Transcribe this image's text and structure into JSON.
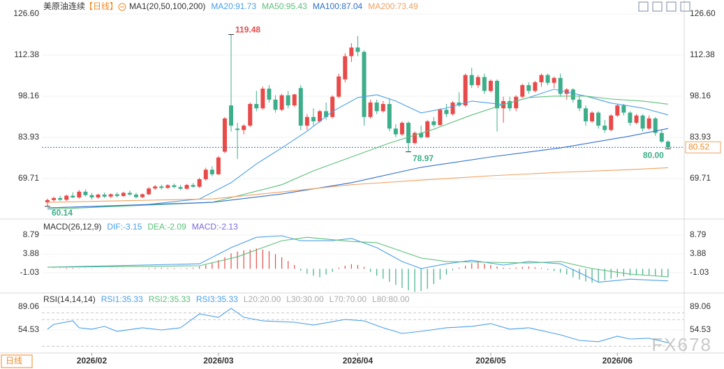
{
  "period_button": "日线",
  "watermark": "FX678",
  "chart_data": [
    {
      "type": "candlestick",
      "title": "美原油连续",
      "period": "【日线】",
      "indicator": "MA1(20,50,100,200)",
      "up_color": "#e84a4a",
      "down_color": "#3dae8a",
      "ylim": [
        56.23,
        129.01
      ],
      "yticks": [
        {
          "value": 126.6,
          "label": "126.60"
        },
        112.38,
        98.16,
        83.93,
        69.71
      ],
      "xticks": [
        {
          "value": 7,
          "label": "2026/02"
        },
        {
          "value": 27,
          "label": "2026/03"
        },
        {
          "value": 49,
          "label": "2026/04"
        },
        {
          "value": 70,
          "label": "2026/05"
        },
        {
          "value": 90,
          "label": "2026/06"
        }
      ],
      "candles": [
        [
          61.5,
          62.8,
          60.14,
          62.3
        ],
        [
          62.3,
          63.5,
          61.8,
          63.0
        ],
        [
          63.0,
          63.8,
          62.0,
          62.4
        ],
        [
          62.4,
          64.2,
          62.0,
          63.8
        ],
        [
          63.8,
          65.0,
          63.0,
          63.2
        ],
        [
          63.2,
          65.8,
          62.8,
          65.2
        ],
        [
          65.2,
          66.0,
          63.5,
          64.0
        ],
        [
          64.0,
          64.8,
          62.5,
          63.2
        ],
        [
          63.2,
          64.5,
          62.8,
          64.2
        ],
        [
          64.2,
          64.9,
          63.0,
          63.5
        ],
        [
          63.5,
          64.6,
          63.0,
          64.3
        ],
        [
          64.3,
          65.0,
          63.2,
          63.7
        ],
        [
          63.7,
          65.2,
          63.4,
          64.8
        ],
        [
          64.8,
          65.6,
          63.8,
          64.2
        ],
        [
          64.2,
          64.8,
          62.9,
          63.3
        ],
        [
          63.3,
          64.6,
          63.0,
          64.3
        ],
        [
          64.3,
          66.8,
          64.0,
          66.3
        ],
        [
          66.3,
          67.5,
          65.8,
          67.0
        ],
        [
          67.0,
          67.6,
          66.0,
          66.5
        ],
        [
          66.5,
          67.8,
          66.2,
          67.4
        ],
        [
          67.4,
          68.0,
          66.4,
          66.8
        ],
        [
          66.8,
          67.5,
          65.8,
          66.2
        ],
        [
          66.2,
          67.9,
          66.0,
          67.5
        ],
        [
          67.5,
          68.2,
          66.6,
          66.9
        ],
        [
          66.9,
          70.0,
          66.5,
          69.5
        ],
        [
          69.5,
          73.5,
          69.0,
          72.8
        ],
        [
          72.8,
          74.0,
          70.5,
          71.2
        ],
        [
          71.2,
          77.5,
          71.0,
          77.0
        ],
        [
          79.0,
          91.0,
          78.5,
          90.5
        ],
        [
          95.0,
          119.48,
          86.0,
          88.0
        ],
        [
          87.0,
          89.0,
          76.5,
          86.5
        ],
        [
          86.5,
          88.5,
          85.0,
          88.0
        ],
        [
          88.0,
          96.0,
          87.5,
          95.5
        ],
        [
          95.5,
          100.0,
          93.0,
          94.0
        ],
        [
          94.0,
          101.5,
          93.5,
          100.8
        ],
        [
          100.8,
          102.0,
          96.0,
          97.0
        ],
        [
          97.0,
          98.5,
          92.5,
          93.5
        ],
        [
          93.5,
          99.0,
          93.0,
          98.5
        ],
        [
          98.5,
          100.0,
          94.0,
          95.0
        ],
        [
          95.0,
          99.0,
          94.5,
          98.8
        ],
        [
          101.0,
          102.0,
          86.5,
          88.0
        ],
        [
          88.0,
          92.0,
          86.5,
          91.0
        ],
        [
          91.0,
          94.0,
          88.0,
          89.5
        ],
        [
          89.5,
          93.5,
          89.0,
          93.0
        ],
        [
          93.0,
          96.0,
          90.0,
          91.0
        ],
        [
          91.0,
          98.5,
          90.5,
          98.0
        ],
        [
          98.0,
          106.0,
          97.5,
          105.0
        ],
        [
          104.0,
          113.0,
          103.0,
          112.0
        ],
        [
          112.0,
          116.5,
          110.0,
          115.0
        ],
        [
          115.0,
          119.0,
          112.0,
          113.5
        ],
        [
          113.5,
          114.0,
          88.0,
          91.0
        ],
        [
          91.0,
          97.0,
          90.5,
          96.0
        ],
        [
          96.0,
          97.0,
          92.0,
          93.0
        ],
        [
          93.0,
          96.5,
          92.5,
          95.5
        ],
        [
          95.5,
          97.5,
          86.0,
          87.0
        ],
        [
          87.0,
          88.5,
          84.0,
          85.0
        ],
        [
          85.0,
          89.5,
          84.5,
          89.0
        ],
        [
          89.0,
          89.5,
          78.97,
          82.0
        ],
        [
          82.0,
          86.0,
          81.5,
          85.5
        ],
        [
          85.5,
          88.0,
          83.5,
          84.0
        ],
        [
          84.0,
          90.0,
          83.8,
          89.5
        ],
        [
          89.5,
          91.0,
          87.5,
          88.2
        ],
        [
          88.2,
          94.0,
          88.0,
          93.5
        ],
        [
          93.5,
          95.5,
          91.0,
          92.0
        ],
        [
          92.0,
          96.5,
          91.5,
          96.0
        ],
        [
          96.0,
          99.5,
          94.5,
          95.0
        ],
        [
          95.0,
          106.0,
          94.5,
          105.5
        ],
        [
          105.5,
          108.0,
          101.0,
          102.0
        ],
        [
          102.0,
          105.5,
          101.0,
          104.8
        ],
        [
          104.8,
          106.0,
          99.0,
          100.0
        ],
        [
          100.0,
          104.0,
          99.5,
          103.5
        ],
        [
          103.5,
          104.0,
          86.0,
          94.0
        ],
        [
          94.0,
          98.0,
          89.0,
          96.5
        ],
        [
          96.5,
          98.0,
          93.0,
          94.0
        ],
        [
          94.0,
          98.5,
          93.0,
          98.0
        ],
        [
          98.0,
          102.5,
          97.5,
          102.0
        ],
        [
          102.0,
          103.0,
          99.0,
          100.0
        ],
        [
          100.0,
          103.5,
          99.5,
          103.0
        ],
        [
          103.0,
          106.0,
          101.5,
          105.5
        ],
        [
          105.5,
          106.0,
          102.0,
          102.8
        ],
        [
          102.8,
          105.0,
          101.0,
          104.5
        ],
        [
          104.5,
          106.0,
          98.0,
          99.0
        ],
        [
          99.0,
          101.0,
          97.0,
          100.5
        ],
        [
          100.5,
          101.0,
          96.0,
          97.0
        ],
        [
          97.0,
          98.5,
          93.0,
          94.0
        ],
        [
          94.0,
          95.0,
          88.0,
          89.5
        ],
        [
          89.5,
          93.0,
          89.0,
          92.5
        ],
        [
          92.5,
          93.0,
          87.0,
          88.0
        ],
        [
          88.0,
          90.0,
          85.5,
          86.5
        ],
        [
          86.5,
          92.0,
          86.0,
          91.5
        ],
        [
          91.5,
          95.5,
          91.0,
          95.0
        ],
        [
          95.0,
          95.5,
          91.5,
          92.5
        ],
        [
          92.5,
          93.0,
          88.0,
          89.0
        ],
        [
          89.0,
          92.0,
          88.5,
          91.5
        ],
        [
          91.5,
          92.0,
          86.0,
          87.0
        ],
        [
          87.0,
          91.5,
          86.5,
          90.5
        ],
        [
          90.5,
          91.0,
          84.5,
          85.5
        ],
        [
          85.5,
          86.5,
          82.0,
          82.5
        ],
        [
          82.5,
          83.0,
          80.0,
          80.52
        ]
      ],
      "series": [
        {
          "name": "MA20:91.73",
          "color": "#4a9fe8",
          "x": [
            0,
            15,
            24,
            29,
            33,
            37,
            41,
            45,
            49,
            52,
            55,
            59,
            63,
            67,
            72,
            76,
            80,
            85,
            89,
            94,
            98
          ],
          "values": [
            59.6,
            60.6,
            62.7,
            68.3,
            74.8,
            80.3,
            86.1,
            92.9,
            97.7,
            98.7,
            96.5,
            92.4,
            94.1,
            96.5,
            95.3,
            97.7,
            100.6,
            98.2,
            95.8,
            94.1,
            91.73
          ]
        },
        {
          "name": "MA50:95.43",
          "color": "#5bbf7a",
          "x": [
            0,
            26,
            37,
            42,
            48,
            54,
            61,
            67,
            72,
            76,
            80,
            85,
            89,
            94,
            98
          ],
          "values": [
            59.1,
            61.5,
            67.6,
            72.4,
            77.2,
            82.0,
            86.8,
            91.7,
            95.3,
            97.7,
            98.2,
            98.2,
            97.2,
            96.5,
            95.43
          ]
        },
        {
          "name": "MA100:87.04",
          "color": "#2f6fd0",
          "x": [
            0,
            26,
            37,
            48,
            59,
            70,
            81,
            92,
            98
          ],
          "values": [
            59.6,
            61.5,
            64.4,
            68.3,
            73.6,
            77.2,
            80.3,
            84.4,
            87.04
          ]
        },
        {
          "name": "MA200:73.49",
          "color": "#f0a060",
          "x": [
            0,
            15,
            26,
            37,
            48,
            59,
            70,
            81,
            92,
            98
          ],
          "values": [
            61.5,
            62.2,
            62.7,
            65.1,
            67.6,
            69.2,
            70.7,
            71.9,
            72.8,
            73.49
          ]
        }
      ],
      "annotations": [
        119.48,
        78.97,
        60.14,
        {
          "value": 80,
          "label": "80.00"
        }
      ]
    },
    {
      "type": "macd",
      "title": "MACD(26,12,9)",
      "up_color": "#e84a4a",
      "down_color": "#3dae8a",
      "ylim": [
        -6.3,
        11.5
      ],
      "yticks": [
        8.79,
        3.88,
        -1.03
      ],
      "histogram": {
        "name": "MACD:-2.13",
        "color": "#7a6ad8",
        "values": [
          0,
          0.1,
          0.1,
          0.2,
          0.2,
          0.1,
          0.1,
          0.1,
          0,
          0,
          0.1,
          0.1,
          0.1,
          0,
          0,
          0.1,
          0.2,
          0.3,
          0.3,
          0.2,
          0.2,
          0.1,
          0.2,
          0.3,
          0.6,
          1.0,
          1.5,
          2.2,
          3.0,
          4.0,
          4.5,
          4.8,
          5.0,
          5.3,
          5.0,
          4.6,
          3.8,
          3.0,
          2.0,
          1.0,
          -0.5,
          -1.3,
          -1.8,
          -2.2,
          -1.5,
          -0.8,
          0.3,
          0.8,
          1.2,
          1.0,
          0.5,
          -0.8,
          -1.8,
          -2.6,
          -3.4,
          -4.2,
          -5.0,
          -5.6,
          -6.0,
          -5.8,
          -5.2,
          -4.0,
          -2.8,
          -1.5,
          -0.4,
          0.3,
          0.8,
          1.4,
          1.6,
          1.3,
          1.0,
          0.6,
          0.3,
          0.2,
          0.3,
          0.5,
          0.6,
          0.4,
          0.2,
          -0.3,
          -0.6,
          -1.0,
          -1.5,
          -2.2,
          -2.8,
          -3.3,
          -3.6,
          -3.5,
          -3.0,
          -2.6,
          -2.2,
          -2.0,
          -1.8,
          -1.7,
          -1.6,
          -1.6,
          -1.7,
          -1.9,
          -2.13
        ]
      },
      "series": [
        {
          "name": "DIF:-3.15",
          "color": "#4a9fe8",
          "x": [
            0,
            15,
            24,
            29,
            33,
            37,
            40,
            45,
            48,
            52,
            56,
            59,
            63,
            67,
            72,
            76,
            81,
            85,
            87,
            92,
            98
          ],
          "values": [
            0.4,
            0.96,
            1.3,
            5.5,
            8.2,
            8.6,
            7.3,
            7.3,
            7.9,
            5.5,
            1.9,
            0.05,
            1.3,
            2.2,
            0.96,
            1.9,
            1.3,
            -1.8,
            -3.5,
            -2.7,
            -3.15
          ]
        },
        {
          "name": "DEA:-2.09",
          "color": "#5bbf7a",
          "x": [
            0,
            24,
            30,
            37,
            41,
            48,
            52,
            59,
            63,
            70,
            76,
            81,
            86,
            92,
            98
          ],
          "values": [
            0.4,
            0.78,
            3.1,
            7.3,
            8.2,
            7.1,
            6.8,
            2.8,
            1.9,
            1.7,
            1.5,
            1.9,
            0.05,
            -1.4,
            -2.09
          ]
        }
      ]
    },
    {
      "type": "line",
      "title": "RSI(14,14,14)",
      "ylim": [
        21,
        104.75
      ],
      "yticks": [
        89.06,
        54.53
      ],
      "series": [
        {
          "name": "RSI1:35.33",
          "color": "#4a9fe8",
          "x": [
            0,
            1,
            4,
            5,
            7,
            9,
            11,
            15,
            18,
            21,
            24,
            27,
            29,
            31,
            34,
            39,
            42,
            47,
            50,
            53,
            56,
            59,
            63,
            67,
            70,
            73,
            76,
            81,
            84,
            87,
            90,
            92,
            95,
            98
          ],
          "values": [
            55.6,
            62.9,
            68.1,
            57.7,
            55.6,
            59.8,
            52.4,
            57.7,
            54.5,
            57.7,
            78.6,
            73.4,
            87.0,
            73.4,
            68.1,
            66.0,
            61.9,
            70.2,
            68.1,
            57.7,
            49.3,
            52.4,
            57.7,
            59.8,
            64.0,
            55.6,
            57.7,
            47.2,
            38.8,
            36.8,
            45.1,
            40.9,
            42.0,
            35.33
          ]
        },
        {
          "name": "RSI2:35.33",
          "color": "#5bbf7a"
        },
        {
          "name": "RSI3:35.33",
          "color": "#4a9fe8"
        }
      ],
      "levels": [
        {
          "value": 20,
          "label": "L20:20.00"
        },
        {
          "value": 30,
          "label": "L30:30.00"
        },
        {
          "value": 70,
          "label": "L70:70.00"
        },
        {
          "value": 80,
          "label": "L80:80.00"
        }
      ]
    }
  ]
}
